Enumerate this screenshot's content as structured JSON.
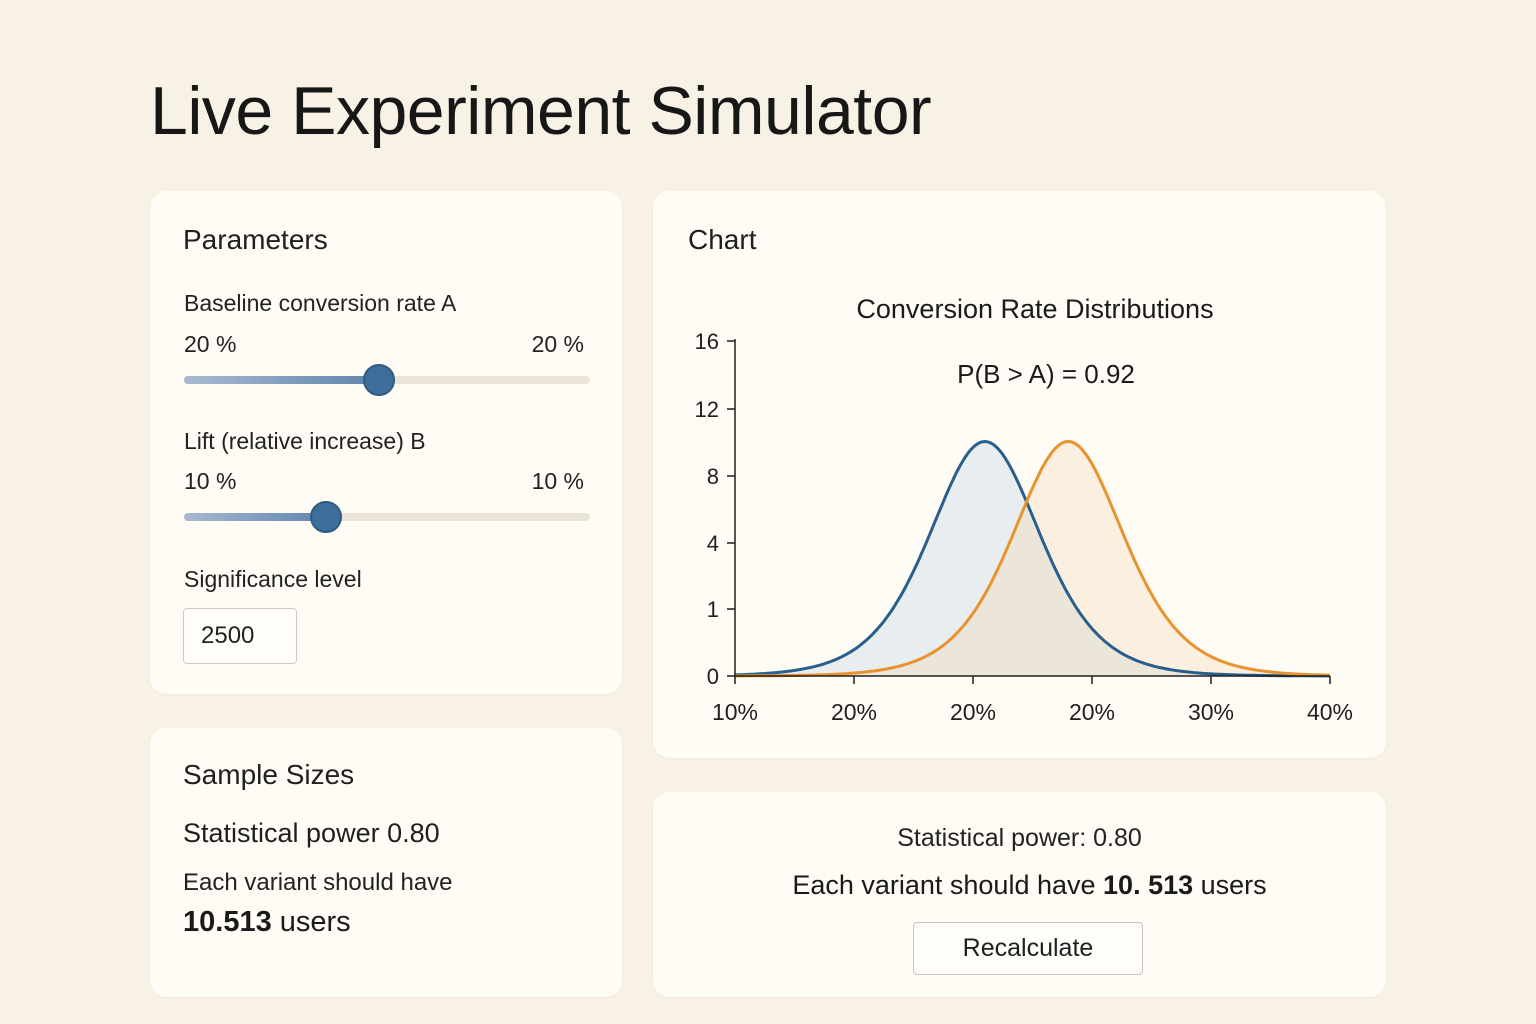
{
  "app_title": "Live Experiment Simulator",
  "parameters": {
    "title": "Parameters",
    "baseline": {
      "label": "Baseline conversion rate A",
      "min_label": "20 %",
      "value_label": "20 %",
      "fraction": 0.48
    },
    "lift": {
      "label": "Lift (relative increase) B",
      "min_label": "10 %",
      "value_label": "10 %",
      "fraction": 0.35
    },
    "significance": {
      "label": "Significance level",
      "value": "2500"
    }
  },
  "sample_sizes": {
    "title": "Sample Sizes",
    "power_text": "Statistical power 0.80",
    "each_text": "Each variant should have",
    "users_number": "10.513",
    "users_suffix": "users"
  },
  "chart_card": {
    "title": "Chart"
  },
  "chart_data": {
    "type": "area",
    "title": "Conversion Rate Distributions",
    "annotation": "P(B > A) = 0.92",
    "y_ticks": [
      "0",
      "1",
      "4",
      "8",
      "12",
      "16"
    ],
    "x_ticks": [
      "10%",
      "20%",
      "20%",
      "20%",
      "30%",
      "40%"
    ],
    "ylim": [
      0,
      16
    ],
    "series": [
      {
        "color": "#2a5f8d",
        "fill": "#e6ebee",
        "peak_tick_index": 2.1,
        "peak_value": 11.2,
        "width": 0.72
      },
      {
        "color": "#e8932f",
        "fill": "#fbeedd",
        "peak_tick_index": 2.8,
        "peak_value": 11.2,
        "width": 0.72
      }
    ],
    "overlap_fill": "#ece6da"
  },
  "result": {
    "power_text": "Statistical power: 0.80",
    "each_prefix": "Each variant should have",
    "users_number": "10. 513",
    "users_suffix": "users",
    "recalc_label": "Recalculate"
  }
}
